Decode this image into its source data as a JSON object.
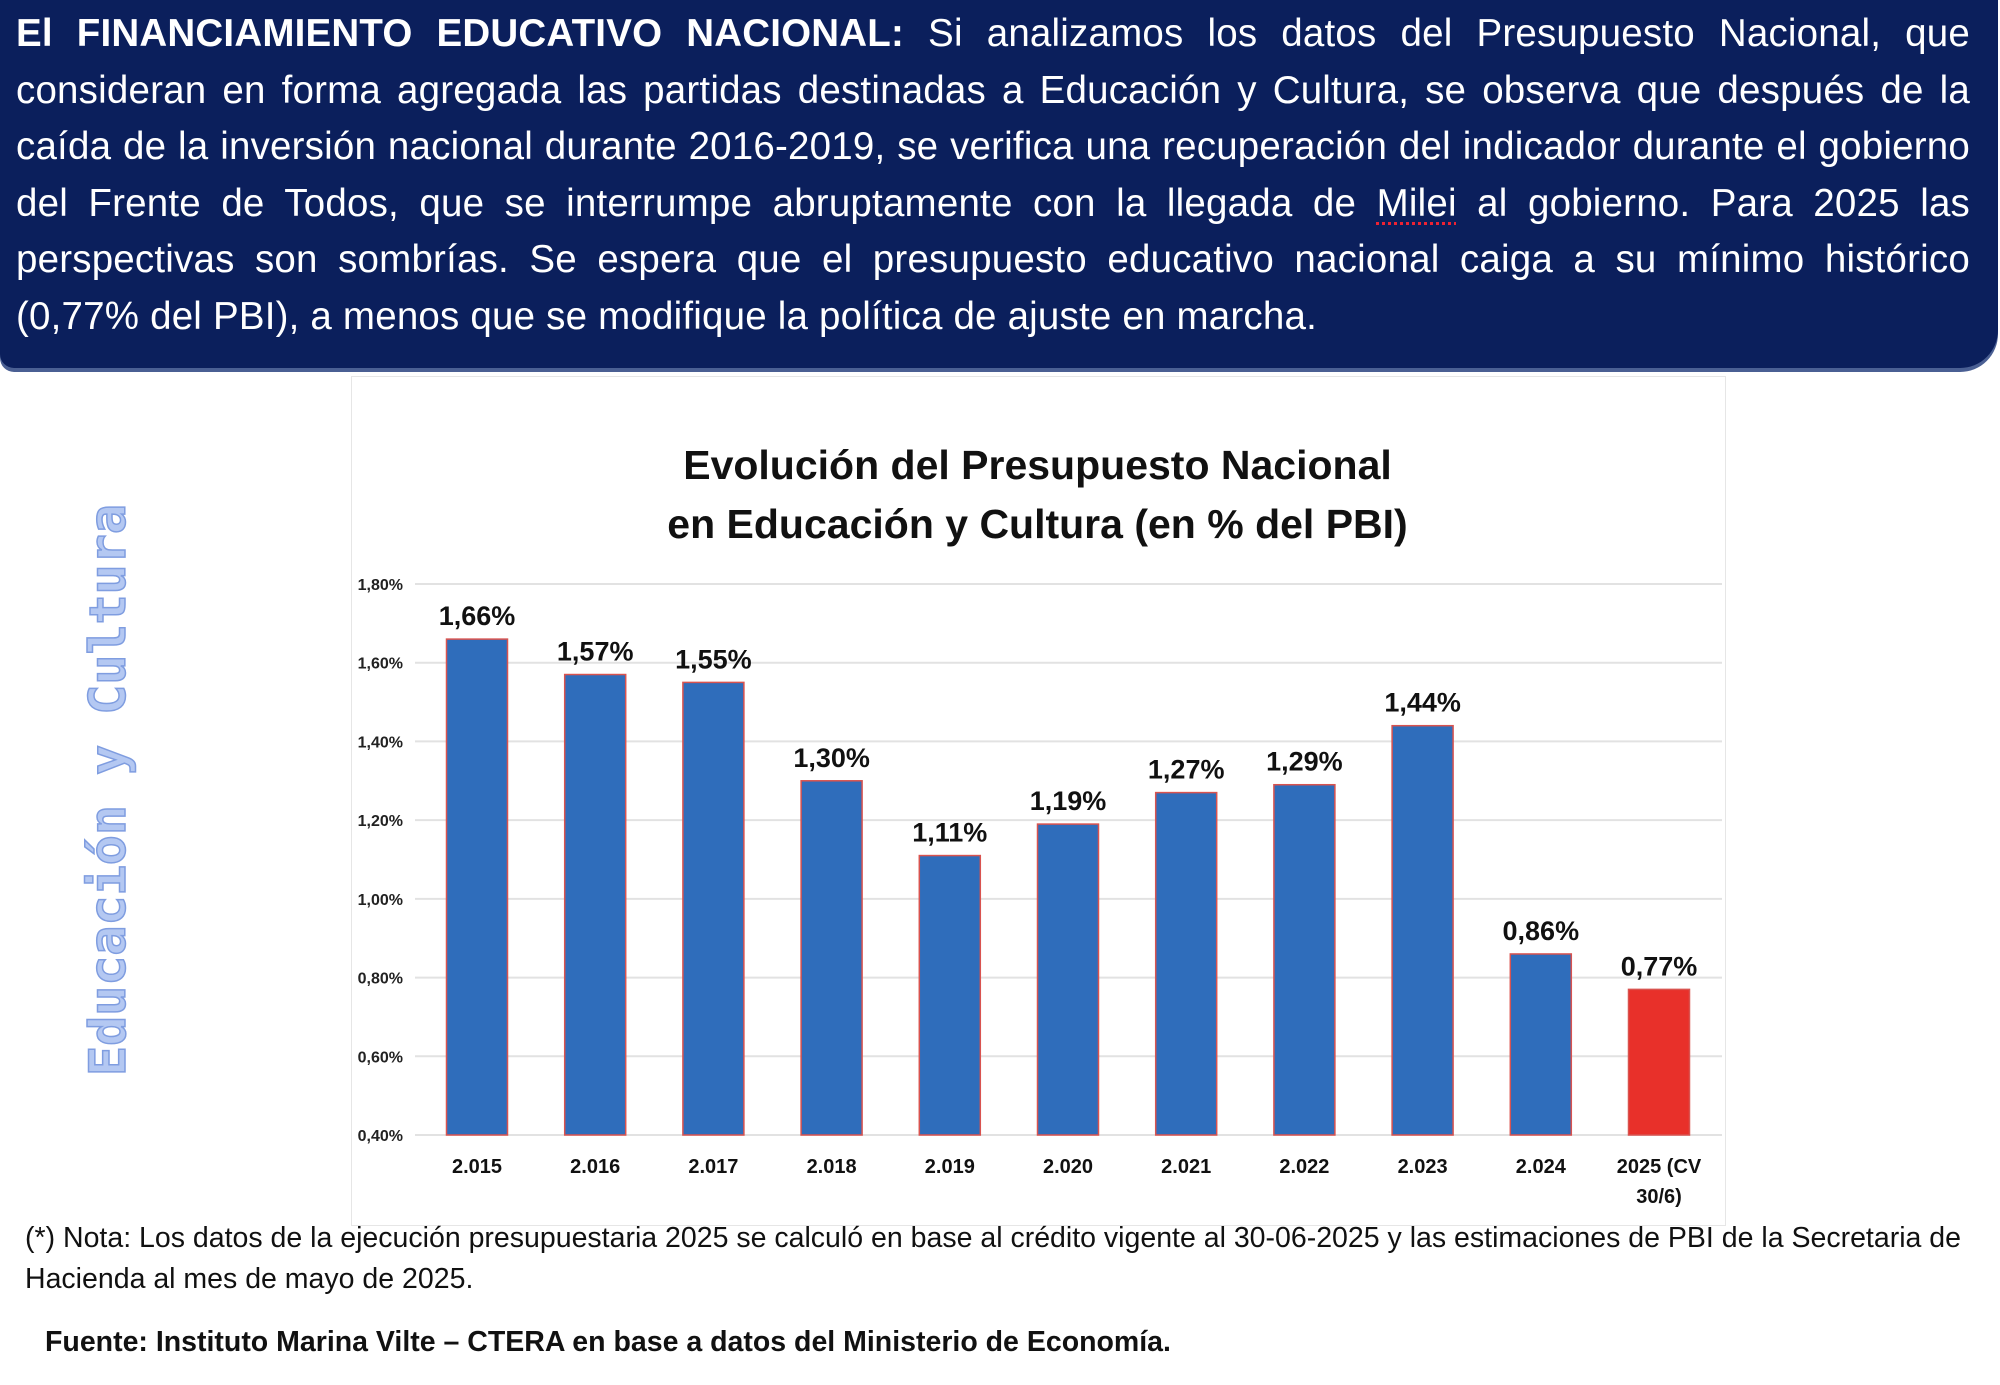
{
  "header": {
    "bold_lead": "El FINANCIAMIENTO EDUCATIVO NACIONAL:",
    "text_before_milei": " Si analizamos los datos del Presupuesto Nacional, que consideran en forma agregada las partidas destinadas a Educación y Cultura, se observa que después de la caída de la inversión nacional durante 2016-2019, se verifica una recuperación del indicador durante el gobierno del Frente de Todos, que se interrumpe abruptamente con la llegada de ",
    "milei": "Milei",
    "text_after_milei": " al gobierno. Para 2025 las perspectivas son sombrías. Se espera que el presupuesto educativo nacional caiga a su mínimo histórico (0,77% del PBI), a menos que se modifique la política de ajuste en marcha."
  },
  "side_label": "Educación y Cultura",
  "chart_data": {
    "type": "bar",
    "title_line1": "Evolución del Presupuesto Nacional",
    "title_line2": "en Educación y Cultura (en % del PBI)",
    "categories": [
      "2.015",
      "2.016",
      "2.017",
      "2.018",
      "2.019",
      "2.020",
      "2.021",
      "2.022",
      "2.023",
      "2.024",
      "2025 (CV 30/6)"
    ],
    "category_lines": [
      [
        "2.015"
      ],
      [
        "2.016"
      ],
      [
        "2.017"
      ],
      [
        "2.018"
      ],
      [
        "2.019"
      ],
      [
        "2.020"
      ],
      [
        "2.021"
      ],
      [
        "2.022"
      ],
      [
        "2.023"
      ],
      [
        "2.024"
      ],
      [
        "2025 (CV",
        "30/6)"
      ]
    ],
    "values": [
      1.66,
      1.57,
      1.55,
      1.3,
      1.11,
      1.19,
      1.27,
      1.29,
      1.44,
      0.86,
      0.77
    ],
    "data_labels": [
      "1,66%",
      "1,57%",
      "1,55%",
      "1,30%",
      "1,11%",
      "1,19%",
      "1,27%",
      "1,29%",
      "1,44%",
      "0,86%",
      "0,77%"
    ],
    "ylim": [
      0.4,
      1.8
    ],
    "yticks": [
      0.4,
      0.6,
      0.8,
      1.0,
      1.2,
      1.4,
      1.6,
      1.8
    ],
    "ytick_labels": [
      "0,40%",
      "0,60%",
      "0,80%",
      "1,00%",
      "1,20%",
      "1,40%",
      "1,60%",
      "1,80%"
    ],
    "grid": true,
    "colors": {
      "bar": "#2f6dbb",
      "highlight": "#e8302a",
      "bar_outline": "#d9534f"
    },
    "highlight_index": 10
  },
  "note": "(*) Nota: Los datos de la ejecución presupuestaria 2025 se calculó en base al crédito vigente al 30-06-2025 y las estimaciones de PBI de la Secretaria de Hacienda al mes de mayo de 2025.",
  "source": "Fuente: Instituto Marina Vilte – CTERA en base a datos del Ministerio de Economía."
}
